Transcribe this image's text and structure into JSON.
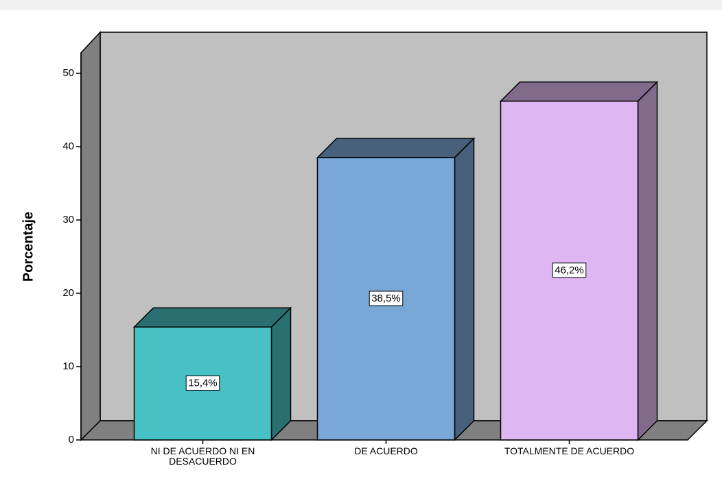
{
  "chart_data": {
    "type": "bar3d",
    "y_label": "Porcentaje",
    "categories": [
      "NI DE ACUERDO NI EN DESACUERDO",
      "DE ACUERDO",
      "TOTALMENTE DE ACUERDO"
    ],
    "values": [
      15.4,
      38.5,
      46.2
    ],
    "value_labels": [
      "15,4%",
      "38,5%",
      "46,2%"
    ],
    "colors": [
      "#48c1c4",
      "#7aa8d6",
      "#deb6f2"
    ],
    "ylim": [
      0,
      50
    ],
    "yticks": [
      0,
      10,
      20,
      30,
      40,
      50
    ],
    "grid": false
  }
}
